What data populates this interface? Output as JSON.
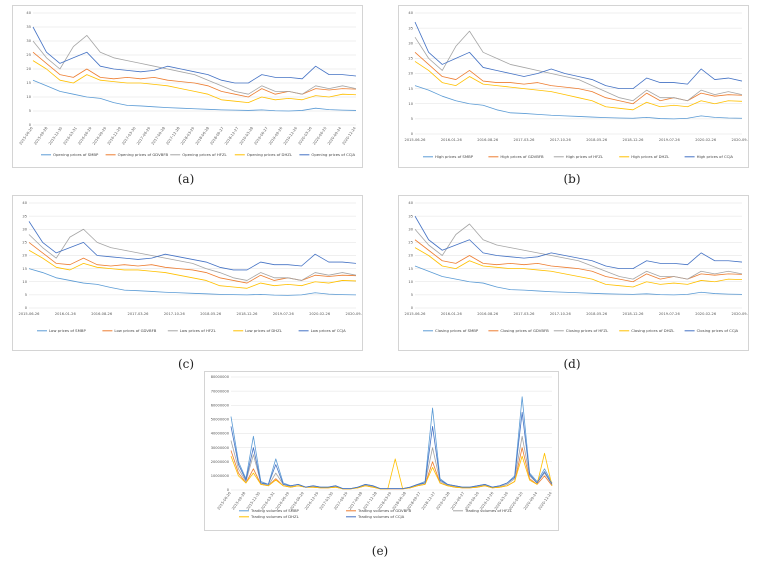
{
  "panels": {
    "a": {
      "label": "(a)"
    },
    "b": {
      "label": "(b)"
    },
    "c": {
      "label": "(c)"
    },
    "d": {
      "label": "(d)"
    },
    "e": {
      "label": "(e)"
    }
  },
  "colors": {
    "s0": "#5b9bd5",
    "s1": "#ed7d31",
    "s2": "#a5a5a5",
    "s3": "#ffc000",
    "s4": "#4472c4"
  },
  "chart_data": [
    {
      "id": "a",
      "type": "line",
      "ylim": [
        0,
        40
      ],
      "yticks": [
        "0",
        "5",
        "10",
        "15",
        "20",
        "25",
        "30",
        "35",
        "40"
      ],
      "x_ticks_rotated": true,
      "x_tick_labels": [
        "2015-06-26",
        "2015-09-28",
        "2015-12-30",
        "2016-03-31",
        "2016-06-29",
        "2016-09-29",
        "2016-12-29",
        "2017-03-30",
        "2017-06-29",
        "2017-09-28",
        "2017-12-28",
        "2018-03-29",
        "2018-06-28",
        "2018-09-27",
        "2018-12-27",
        "2019-03-28",
        "2019-06-27",
        "2019-09-26",
        "2019-12-26",
        "2020-03-26",
        "2020-06-25",
        "2020-09-24",
        "2020-12-24"
      ],
      "series": [
        {
          "name": "Opening prices of SMBP",
          "values": [
            16,
            14,
            12,
            11,
            10,
            9.5,
            8,
            7,
            6.8,
            6.5,
            6.2,
            6,
            5.8,
            5.6,
            5.4,
            5.3,
            5.2,
            5.4,
            5.1,
            5,
            5.2,
            6,
            5.5,
            5.3,
            5.2
          ]
        },
        {
          "name": "Opening prices of GDVBFB",
          "values": [
            26,
            22,
            18,
            17,
            20,
            17,
            16.5,
            17,
            16.5,
            17,
            16,
            15.5,
            15,
            14,
            12,
            11,
            10,
            13,
            11,
            12,
            11,
            13,
            12.5,
            13,
            12.8
          ]
        },
        {
          "name": "Opening prices of HFZL",
          "values": [
            30,
            24,
            20,
            28,
            32,
            26,
            24,
            23,
            22,
            21,
            20,
            19,
            18,
            16,
            14,
            12,
            11,
            14,
            12,
            12,
            11,
            14,
            13,
            14,
            13
          ]
        },
        {
          "name": "Opening prices of DHZL",
          "values": [
            23,
            20,
            16,
            15,
            18,
            16,
            15.5,
            15,
            15,
            14.5,
            14,
            13,
            12,
            11,
            9,
            8.5,
            8,
            10,
            9,
            9.5,
            9,
            10.5,
            10,
            11,
            10.8
          ]
        },
        {
          "name": "Opening prices of CCJA",
          "values": [
            35,
            26,
            22,
            24,
            26,
            21,
            20,
            19.5,
            19,
            19.5,
            21,
            20,
            19,
            18,
            16,
            15,
            15,
            18,
            17,
            17,
            16.5,
            21,
            18,
            18,
            17.5
          ]
        }
      ]
    },
    {
      "id": "b",
      "type": "line",
      "ylim": [
        0,
        40
      ],
      "yticks": [
        "0",
        "5",
        "10",
        "15",
        "20",
        "25",
        "30",
        "35",
        "40"
      ],
      "x_ticks_rotated": false,
      "x_tick_labels": [
        "2015-06-26",
        "2016-01-26",
        "2016-08-26",
        "2017-03-26",
        "2017-10-26",
        "2018-05-26",
        "2018-12-26",
        "2019-07-26",
        "2020-02-26",
        "2020-09-26"
      ],
      "series": [
        {
          "name": "High prices of SMBP",
          "values": [
            16,
            14.5,
            12.5,
            11,
            10,
            9.5,
            8,
            7,
            6.8,
            6.5,
            6.2,
            6,
            5.8,
            5.6,
            5.4,
            5.3,
            5.2,
            5.5,
            5.1,
            5,
            5.2,
            6,
            5.5,
            5.3,
            5.2
          ]
        },
        {
          "name": "High prices of GDVBFB",
          "values": [
            27,
            23,
            19,
            18,
            21,
            17.5,
            17,
            17,
            16.5,
            17,
            16,
            15.5,
            15,
            14,
            12,
            11,
            10,
            13.5,
            11,
            12,
            11,
            13.5,
            12.5,
            13,
            12.8
          ]
        },
        {
          "name": "High prices of HFZL",
          "values": [
            32,
            25,
            21,
            29,
            34,
            27,
            25,
            23,
            22,
            21,
            20,
            19,
            18,
            16,
            14,
            12,
            11,
            14.5,
            12,
            12,
            11,
            14.5,
            13,
            14,
            13
          ]
        },
        {
          "name": "High prices of DHZL",
          "values": [
            24,
            21,
            17,
            16,
            19,
            16.5,
            16,
            15.5,
            15,
            14.5,
            14,
            13,
            12,
            11,
            9,
            8.5,
            8,
            10.5,
            9,
            9.5,
            9,
            11,
            10,
            11,
            10.8
          ]
        },
        {
          "name": "High prices of CCJA",
          "values": [
            37,
            27,
            23,
            25,
            27,
            22,
            21,
            20,
            19,
            20,
            21.5,
            20,
            19,
            18,
            16,
            15,
            15,
            18.5,
            17,
            17,
            16.5,
            21.5,
            18,
            18.5,
            17.5
          ]
        }
      ]
    },
    {
      "id": "c",
      "type": "line",
      "ylim": [
        0,
        40
      ],
      "yticks": [
        "0",
        "5",
        "10",
        "15",
        "20",
        "25",
        "30",
        "35",
        "40"
      ],
      "x_ticks_rotated": false,
      "x_tick_labels": [
        "2015-06-26",
        "2016-01-26",
        "2016-08-26",
        "2017-03-26",
        "2017-10-26",
        "2018-05-26",
        "2018-12-26",
        "2019-07-26",
        "2020-02-26",
        "2020-09-26"
      ],
      "series": [
        {
          "name": "Low prices of SMBP",
          "values": [
            15,
            13.5,
            11.5,
            10.5,
            9.5,
            9,
            7.8,
            6.8,
            6.6,
            6.3,
            6,
            5.8,
            5.6,
            5.4,
            5.2,
            5.1,
            5,
            5.2,
            4.9,
            4.8,
            5,
            5.8,
            5.3,
            5.1,
            5
          ]
        },
        {
          "name": "Low prices of GDVBFB",
          "values": [
            25,
            21,
            17,
            16.5,
            19,
            16.5,
            16,
            16.5,
            16,
            16.5,
            15.5,
            15,
            14.5,
            13.5,
            11.5,
            10.5,
            9.5,
            12.5,
            10.5,
            11.5,
            10.5,
            12.5,
            12,
            12.5,
            12.3
          ]
        },
        {
          "name": "Low prices of HFZL",
          "values": [
            28,
            23,
            19,
            27,
            30,
            25,
            23,
            22,
            21,
            20,
            19,
            18,
            17,
            15,
            13.5,
            11.5,
            10.5,
            13.5,
            11.5,
            11.5,
            10.5,
            13.5,
            12.5,
            13.5,
            12.5
          ]
        },
        {
          "name": "Low prices of DHZL",
          "values": [
            22,
            19,
            15.5,
            14.5,
            17,
            15.5,
            15,
            14.5,
            14.5,
            14,
            13.5,
            12.5,
            11.5,
            10.5,
            8.5,
            8,
            7.5,
            9.5,
            8.5,
            9,
            8.5,
            10,
            9.5,
            10.5,
            10.3
          ]
        },
        {
          "name": "Low prices of CCJA",
          "values": [
            33,
            25,
            21,
            23,
            25,
            20,
            19.5,
            19,
            18.5,
            19,
            20.5,
            19.5,
            18.5,
            17.5,
            15.5,
            14.5,
            14.5,
            17.5,
            16.5,
            16.5,
            16,
            20.5,
            17.5,
            17.5,
            17
          ]
        }
      ]
    },
    {
      "id": "d",
      "type": "line",
      "ylim": [
        0,
        40
      ],
      "yticks": [
        "0",
        "5",
        "10",
        "15",
        "20",
        "25",
        "30",
        "35",
        "40"
      ],
      "x_ticks_rotated": false,
      "x_tick_labels": [
        "2015-06-26",
        "2016-01-26",
        "2016-08-26",
        "2017-03-26",
        "2017-10-26",
        "2018-05-26",
        "2018-12-26",
        "2019-07-26",
        "2020-02-26",
        "2020-09-26"
      ],
      "series": [
        {
          "name": "Closing prices of SMBP",
          "values": [
            16,
            14,
            12,
            11,
            10,
            9.5,
            8,
            7,
            6.8,
            6.5,
            6.2,
            6,
            5.8,
            5.6,
            5.4,
            5.3,
            5.2,
            5.4,
            5.1,
            5,
            5.2,
            6,
            5.5,
            5.3,
            5.2
          ]
        },
        {
          "name": "Closing prices of GDVBFB",
          "values": [
            26,
            22,
            18,
            17,
            20,
            17,
            16.5,
            17,
            16.5,
            17,
            16,
            15.5,
            15,
            14,
            12,
            11,
            10,
            13,
            11,
            12,
            11,
            13,
            12.5,
            13,
            12.8
          ]
        },
        {
          "name": "Closing prices of HFZL",
          "values": [
            30,
            24,
            20,
            28,
            32,
            26,
            24,
            23,
            22,
            21,
            20,
            19,
            18,
            16,
            14,
            12,
            11,
            14,
            12,
            12,
            11,
            14,
            13,
            14,
            13
          ]
        },
        {
          "name": "Closing prices of DHZL",
          "values": [
            23,
            20,
            16,
            15,
            18,
            16,
            15.5,
            15,
            15,
            14.5,
            14,
            13,
            12,
            11,
            9,
            8.5,
            8,
            10,
            9,
            9.5,
            9,
            10.5,
            10,
            11,
            10.8
          ]
        },
        {
          "name": "Closing prices of CCJA",
          "values": [
            35,
            26,
            22,
            24,
            26,
            21,
            20,
            19.5,
            19,
            19.5,
            21,
            20,
            19,
            18,
            16,
            15,
            15,
            18,
            17,
            17,
            16.5,
            21,
            18,
            18,
            17.5
          ]
        }
      ]
    },
    {
      "id": "e",
      "type": "line",
      "ylim": [
        0,
        80000000
      ],
      "yticks": [
        "0",
        "10000000",
        "20000000",
        "30000000",
        "40000000",
        "50000000",
        "60000000",
        "70000000",
        "80000000"
      ],
      "x_ticks_rotated": true,
      "x_tick_labels": [
        "2015-06-26",
        "2015-09-28",
        "2015-12-30",
        "2016-03-31",
        "2016-06-29",
        "2016-09-29",
        "2016-12-29",
        "2017-03-30",
        "2017-06-29",
        "2017-09-28",
        "2017-12-28",
        "2018-03-29",
        "2018-06-28",
        "2018-09-27",
        "2018-12-27",
        "2019-03-28",
        "2019-06-27",
        "2019-09-26",
        "2019-12-26",
        "2020-03-26",
        "2020-06-25",
        "2020-09-24",
        "2020-12-24"
      ],
      "series": [
        {
          "name": "Trading volumes of SMBP",
          "values": [
            52000000,
            20000000,
            8000000,
            38000000,
            6000000,
            4000000,
            22000000,
            5000000,
            3000000,
            4000000,
            2000000,
            3000000,
            2000000,
            2000000,
            3000000,
            1000000,
            1000000,
            2000000,
            4000000,
            3000000,
            1000000,
            1000000,
            1000000,
            1000000,
            2000000,
            4000000,
            6000000,
            58000000,
            8000000,
            4000000,
            3000000,
            2000000,
            2000000,
            3000000,
            4000000,
            2000000,
            3000000,
            5000000,
            10000000,
            66000000,
            12000000,
            6000000,
            15000000,
            5000000
          ]
        },
        {
          "name": "Trading volumes of GDVBFB",
          "values": [
            28000000,
            12000000,
            5000000,
            15000000,
            4000000,
            3000000,
            8000000,
            3000000,
            2000000,
            3000000,
            2000000,
            2000000,
            1500000,
            1500000,
            2000000,
            800000,
            800000,
            1500000,
            3000000,
            2000000,
            800000,
            800000,
            800000,
            800000,
            1500000,
            3000000,
            4000000,
            20000000,
            5000000,
            3000000,
            2000000,
            1500000,
            1500000,
            2000000,
            3000000,
            1500000,
            2000000,
            3000000,
            6000000,
            30000000,
            8000000,
            4000000,
            10000000,
            3000000
          ]
        },
        {
          "name": "Trading volumes of HFZL",
          "values": [
            35000000,
            15000000,
            6000000,
            25000000,
            5000000,
            3000000,
            12000000,
            4000000,
            2500000,
            3000000,
            2000000,
            2500000,
            1800000,
            1800000,
            2500000,
            900000,
            900000,
            1800000,
            3500000,
            2500000,
            900000,
            900000,
            900000,
            900000,
            1800000,
            3500000,
            5000000,
            30000000,
            6000000,
            3500000,
            2500000,
            1800000,
            1800000,
            2500000,
            3500000,
            1800000,
            2500000,
            4000000,
            8000000,
            38000000,
            10000000,
            5000000,
            12000000,
            4000000
          ]
        },
        {
          "name": "Trading volumes of DHZL",
          "values": [
            24000000,
            10000000,
            5000000,
            12000000,
            4000000,
            3000000,
            7000000,
            3000000,
            2000000,
            3000000,
            2000000,
            2000000,
            1500000,
            1500000,
            2000000,
            800000,
            800000,
            1500000,
            3000000,
            2000000,
            800000,
            800000,
            22000000,
            800000,
            1500000,
            3000000,
            4000000,
            16000000,
            5000000,
            3000000,
            2000000,
            1500000,
            1500000,
            2000000,
            3000000,
            1500000,
            2000000,
            3000000,
            6000000,
            24000000,
            7000000,
            4000000,
            26000000,
            3000000
          ]
        },
        {
          "name": "Trading volumes of CCJA",
          "values": [
            45000000,
            18000000,
            7000000,
            30000000,
            5000000,
            4000000,
            18000000,
            4000000,
            3000000,
            4000000,
            2000000,
            3000000,
            2000000,
            2000000,
            3000000,
            1000000,
            1000000,
            2000000,
            4000000,
            3000000,
            1000000,
            1000000,
            1000000,
            1000000,
            2000000,
            4000000,
            5000000,
            45000000,
            7000000,
            4000000,
            3000000,
            2000000,
            2000000,
            3000000,
            4000000,
            2000000,
            3000000,
            5000000,
            9000000,
            55000000,
            11000000,
            5000000,
            13000000,
            4000000
          ]
        }
      ]
    }
  ]
}
